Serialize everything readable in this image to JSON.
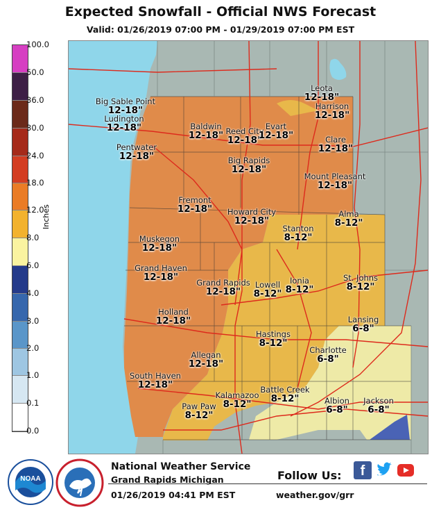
{
  "header": {
    "title": "Expected Snowfall - Official NWS Forecast",
    "valid": "Valid: 01/26/2019 07:00 PM - 01/29/2019 07:00 PM EST"
  },
  "legend": {
    "unit_label": "Inches",
    "levels": [
      {
        "label": "100.0",
        "color": "#d63fc2"
      },
      {
        "label": "50.0",
        "color": "#3d1f45"
      },
      {
        "label": "36.0",
        "color": "#6b2a1a"
      },
      {
        "label": "30.0",
        "color": "#a52a1a"
      },
      {
        "label": "24.0",
        "color": "#d33d22"
      },
      {
        "label": "18.0",
        "color": "#ea7c26"
      },
      {
        "label": "12.0",
        "color": "#f2b22e"
      },
      {
        "label": "8.0",
        "color": "#faf3a0"
      },
      {
        "label": "6.0",
        "color": "#243a8a"
      },
      {
        "label": "4.0",
        "color": "#3667ad"
      },
      {
        "label": "3.0",
        "color": "#5a96c9"
      },
      {
        "label": "2.0",
        "color": "#9ec6e2"
      },
      {
        "label": "1.0",
        "color": "#d6e7f2"
      },
      {
        "label": "0.1",
        "color": "#ffffff"
      },
      {
        "label": "0.0",
        "color": "#ffffff"
      }
    ]
  },
  "map": {
    "colors": {
      "lake": "#8fd6ea",
      "land_out": "#a9b8b3",
      "zone_high": "#e08b4a",
      "zone_mid": "#e8b84a",
      "zone_low": "#eeeaa7",
      "zone_blue": "#4a63b5",
      "roads": "#dd2a1c"
    },
    "locations": [
      {
        "name": "Big Sable Point",
        "range": "12-18\""
      },
      {
        "name": "Ludington",
        "range": "12-18\""
      },
      {
        "name": "Pentwater",
        "range": "12-18\""
      },
      {
        "name": "Baldwin",
        "range": "12-18\""
      },
      {
        "name": "Reed City",
        "range": "12-18\""
      },
      {
        "name": "Evart",
        "range": "12-18\""
      },
      {
        "name": "Leota",
        "range": "12-18\""
      },
      {
        "name": "Harrison",
        "range": "12-18\""
      },
      {
        "name": "Clare",
        "range": "12-18\""
      },
      {
        "name": "Big Rapids",
        "range": "12-18\""
      },
      {
        "name": "Mount Pleasant",
        "range": "12-18\""
      },
      {
        "name": "Fremont",
        "range": "12-18\""
      },
      {
        "name": "Howard City",
        "range": "12-18\""
      },
      {
        "name": "Alma",
        "range": "8-12\""
      },
      {
        "name": "Stanton",
        "range": "8-12\""
      },
      {
        "name": "Muskegon",
        "range": "12-18\""
      },
      {
        "name": "Grand Haven",
        "range": "12-18\""
      },
      {
        "name": "Grand Rapids",
        "range": "12-18\""
      },
      {
        "name": "Lowell",
        "range": "8-12\""
      },
      {
        "name": "Ionia",
        "range": "8-12\""
      },
      {
        "name": "St. Johns",
        "range": "8-12\""
      },
      {
        "name": "Holland",
        "range": "12-18\""
      },
      {
        "name": "Lansing",
        "range": "6-8\""
      },
      {
        "name": "Hastings",
        "range": "8-12\""
      },
      {
        "name": "Allegan",
        "range": "12-18\""
      },
      {
        "name": "Charlotte",
        "range": "6-8\""
      },
      {
        "name": "South Haven",
        "range": "12-18\""
      },
      {
        "name": "Battle Creek",
        "range": "8-12\""
      },
      {
        "name": "Kalamazoo",
        "range": "8-12\""
      },
      {
        "name": "Paw Paw",
        "range": "8-12\""
      },
      {
        "name": "Albion",
        "range": "6-8\""
      },
      {
        "name": "Jackson",
        "range": "6-8\""
      }
    ]
  },
  "footer": {
    "office": "National Weather Service",
    "city": "Grand Rapids Michigan",
    "issued": "01/26/2019 04:41 PM EST",
    "follow": "Follow Us:",
    "website": "weather.gov/grr",
    "logo_noaa": "NOAA",
    "social_icons": [
      "facebook-icon",
      "twitter-icon",
      "youtube-icon"
    ]
  }
}
